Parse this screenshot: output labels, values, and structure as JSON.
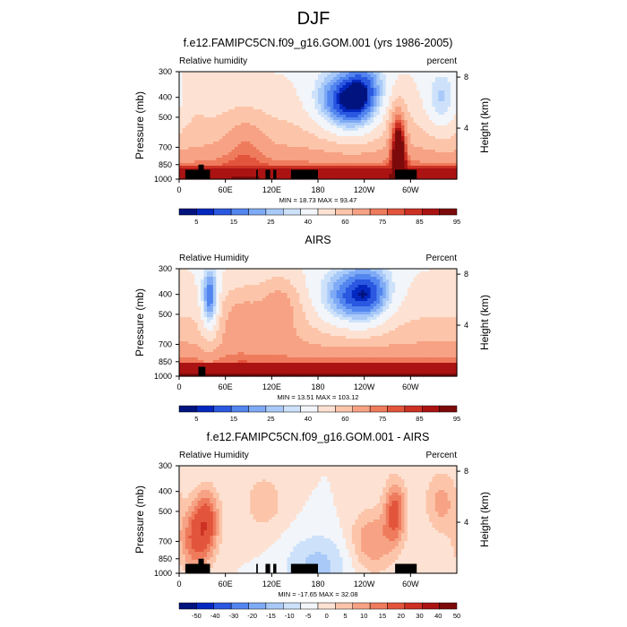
{
  "figure_title": "DJF",
  "colors": {
    "full_scale": [
      "#00137f",
      "#0428bf",
      "#2a58e0",
      "#5385ef",
      "#7faaf5",
      "#a9caf8",
      "#cde2fa",
      "#f2f5f9",
      "#fde2d3",
      "#fcc5aa",
      "#f7a284",
      "#ef7b5d",
      "#e2553c",
      "#cc3123",
      "#ab1313",
      "#7d0a0a"
    ],
    "mask": "#000000"
  },
  "chart_data": [
    {
      "type": "heatmap",
      "title": "f.e12.FAMIPC5CN.f09_g16.GOM.001 (yrs 1986-2005)",
      "left_string": "Relative humidity",
      "right_string": "percent",
      "ylabel": "Pressure (mb)",
      "ylabel_right": "Height (km)",
      "y_ticks": [
        "300",
        "400",
        "500",
        "700",
        "850",
        "1000"
      ],
      "y_right_ticks": [
        "8",
        "4"
      ],
      "x_ticks": [
        "0",
        "60E",
        "120E",
        "180",
        "120W",
        "60W"
      ],
      "ylim": [
        1000,
        300
      ],
      "xlim": [
        0,
        360
      ],
      "stats": "MIN = 18.73  MAX = 93.47",
      "colorbar_labels": [
        "5",
        "15",
        "25",
        "40",
        "60",
        "75",
        "85",
        "95"
      ],
      "colorbar_levels": [
        2.5,
        5,
        10,
        15,
        20,
        25,
        30,
        40,
        50,
        60,
        70,
        75,
        80,
        85,
        90,
        95
      ],
      "features": [
        {
          "lon": 20,
          "p": 350,
          "v": 55,
          "w": 12
        },
        {
          "lon": 40,
          "p": 500,
          "v": 50,
          "w": 15
        },
        {
          "lon": 85,
          "p": 650,
          "v": 62,
          "w": 20
        },
        {
          "lon": 175,
          "p": 450,
          "v": 50,
          "w": 25
        },
        {
          "lon": 205,
          "p": 420,
          "v": 20,
          "w": 25
        },
        {
          "lon": 230,
          "p": 500,
          "v": 38,
          "w": 22
        },
        {
          "lon": 240,
          "p": 370,
          "v": 23,
          "w": 20
        },
        {
          "lon": 283,
          "p": 560,
          "v": 72,
          "w": 8
        },
        {
          "lon": 285,
          "p": 800,
          "v": 88,
          "w": 6
        },
        {
          "lon": 340,
          "p": 420,
          "v": 30,
          "w": 15
        },
        {
          "lon": 350,
          "p": 650,
          "v": 48,
          "w": 20
        }
      ],
      "surface_value": 90,
      "masks": [
        {
          "x0": 8,
          "x1": 30,
          "p_top": 900
        },
        {
          "x0": 25,
          "x1": 32,
          "p_top": 850
        },
        {
          "x0": 30,
          "x1": 40,
          "p_top": 900
        },
        {
          "x0": 100,
          "x1": 102,
          "p_top": 900
        },
        {
          "x0": 112,
          "x1": 118,
          "p_top": 900
        },
        {
          "x0": 122,
          "x1": 126,
          "p_top": 900
        },
        {
          "x0": 145,
          "x1": 180,
          "p_top": 900
        },
        {
          "x0": 280,
          "x1": 308,
          "p_top": 900
        }
      ]
    },
    {
      "type": "heatmap",
      "title": "AIRS",
      "left_string": "Relative Humidity",
      "right_string": "Percent",
      "ylabel": "Pressure (mb)",
      "ylabel_right": "Height (km)",
      "y_ticks": [
        "300",
        "400",
        "500",
        "700",
        "850",
        "1000"
      ],
      "y_right_ticks": [
        "8",
        "4"
      ],
      "x_ticks": [
        "0",
        "60E",
        "120E",
        "180",
        "120W",
        "60W"
      ],
      "ylim": [
        1000,
        300
      ],
      "xlim": [
        0,
        360
      ],
      "stats": "MIN = 13.51  MAX = 103.12",
      "colorbar_labels": [
        "5",
        "15",
        "25",
        "40",
        "60",
        "75",
        "85",
        "95"
      ],
      "colorbar_levels": [
        2.5,
        5,
        10,
        15,
        20,
        25,
        30,
        40,
        50,
        60,
        70,
        75,
        80,
        85,
        90,
        95
      ],
      "features": [
        {
          "lon": 40,
          "p": 420,
          "v": 15,
          "w": 8
        },
        {
          "lon": 40,
          "p": 700,
          "v": 45,
          "w": 10
        },
        {
          "lon": 80,
          "p": 500,
          "v": 65,
          "w": 20
        },
        {
          "lon": 130,
          "p": 450,
          "v": 70,
          "w": 20
        },
        {
          "lon": 180,
          "p": 450,
          "v": 50,
          "w": 25
        },
        {
          "lon": 215,
          "p": 420,
          "v": 22,
          "w": 28
        },
        {
          "lon": 250,
          "p": 400,
          "v": 24,
          "w": 22
        },
        {
          "lon": 330,
          "p": 500,
          "v": 50,
          "w": 20
        }
      ],
      "surface_value": 92,
      "masks": [
        {
          "x0": 25,
          "x1": 34,
          "p_top": 900
        }
      ]
    },
    {
      "type": "heatmap",
      "title": "f.e12.FAMIPC5CN.f09_g16.GOM.001 - AIRS",
      "left_string": "Relative Humidity",
      "right_string": "Percent",
      "ylabel": "Pressure (mb)",
      "ylabel_right": "Height (km)",
      "y_ticks": [
        "300",
        "400",
        "500",
        "700",
        "850",
        "1000"
      ],
      "y_right_ticks": [
        "8",
        "4"
      ],
      "x_ticks": [
        "0",
        "60E",
        "120E",
        "180",
        "120W",
        "60W"
      ],
      "ylim": [
        1000,
        300
      ],
      "xlim": [
        0,
        360
      ],
      "stats": "MIN = -17.65  MAX = 32.08",
      "colorbar_labels": [
        "-50",
        "-40",
        "-30",
        "-20",
        "-15",
        "-10",
        "-5",
        "0",
        "5",
        "10",
        "15",
        "20",
        "30",
        "40",
        "50"
      ],
      "colorbar_levels": [
        -50,
        -40,
        -30,
        -20,
        -15,
        -10,
        -5,
        0,
        5,
        10,
        15,
        20,
        30,
        40,
        50
      ],
      "features": [
        {
          "lon": 35,
          "p": 550,
          "v": 22,
          "w": 12
        },
        {
          "lon": 20,
          "p": 700,
          "v": 18,
          "w": 15
        },
        {
          "lon": 110,
          "p": 450,
          "v": 8,
          "w": 20
        },
        {
          "lon": 250,
          "p": 700,
          "v": 15,
          "w": 20
        },
        {
          "lon": 280,
          "p": 500,
          "v": 22,
          "w": 10
        },
        {
          "lon": 340,
          "p": 450,
          "v": 12,
          "w": 15
        },
        {
          "lon": 180,
          "p": 920,
          "v": -12,
          "w": 30
        }
      ],
      "surface_value": 0,
      "masks": [
        {
          "x0": 8,
          "x1": 30,
          "p_top": 900
        },
        {
          "x0": 25,
          "x1": 32,
          "p_top": 850
        },
        {
          "x0": 30,
          "x1": 40,
          "p_top": 900
        },
        {
          "x0": 100,
          "x1": 102,
          "p_top": 900
        },
        {
          "x0": 112,
          "x1": 118,
          "p_top": 900
        },
        {
          "x0": 122,
          "x1": 126,
          "p_top": 900
        },
        {
          "x0": 145,
          "x1": 180,
          "p_top": 900
        },
        {
          "x0": 280,
          "x1": 308,
          "p_top": 900
        }
      ]
    }
  ]
}
